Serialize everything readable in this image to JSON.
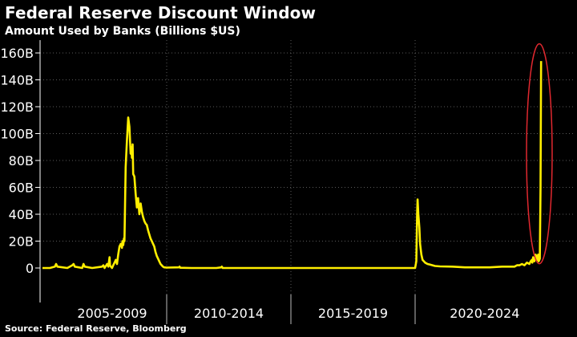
{
  "title": "Federal Reserve Discount Window",
  "subtitle": "Amount Used by Banks (Billions $US)",
  "source": "Source: Federal Reserve, Bloomberg",
  "colors": {
    "background": "#000000",
    "line": "#ffee00",
    "highlight": "#e0282f",
    "grid": "#5a5a5a"
  },
  "chart_data": {
    "type": "line",
    "title": "Federal Reserve Discount Window",
    "subtitle": "Amount Used by Banks (Billions $US)",
    "xlabel": "",
    "ylabel": "",
    "x_range": [
      2003.0,
      2023.6
    ],
    "ylim": [
      0,
      170
    ],
    "yticks": [
      0,
      20,
      40,
      60,
      80,
      100,
      120,
      140,
      160
    ],
    "ytick_labels": [
      "0",
      "20B",
      "40B",
      "60B",
      "80B",
      "100B",
      "120B",
      "140B",
      "160B"
    ],
    "grid": true,
    "categories": [
      {
        "label": "2005-2009",
        "start": 2003.0,
        "end": 2008.0
      },
      {
        "label": "2010-2014",
        "start": 2008.0,
        "end": 2013.0
      },
      {
        "label": "2015-2019",
        "start": 2013.0,
        "end": 2018.0
      },
      {
        "label": "2020-2024",
        "start": 2018.0,
        "end": 2023.6
      }
    ],
    "series": [
      {
        "x": [
          2003.0,
          2003.3,
          2003.5,
          2003.55,
          2003.6,
          2004.0,
          2004.2,
          2004.25,
          2004.3,
          2004.6,
          2004.65,
          2004.7,
          2005.0,
          2005.4,
          2005.45,
          2005.5,
          2005.6,
          2005.65,
          2005.7,
          2005.72,
          2005.75,
          2005.8,
          2005.85,
          2005.9,
          2005.95,
          2006.0,
          2006.05,
          2006.1,
          2006.15,
          2006.2,
          2006.22,
          2006.25,
          2006.28,
          2006.3,
          2006.35,
          2006.4,
          2006.45,
          2006.5,
          2006.55,
          2006.58,
          2006.6,
          2006.63,
          2006.65,
          2006.7,
          2006.75,
          2006.8,
          2006.85,
          2006.9,
          2006.95,
          2007.0,
          2007.05,
          2007.1,
          2007.15,
          2007.2,
          2007.25,
          2007.3,
          2007.35,
          2007.4,
          2007.45,
          2007.5,
          2007.55,
          2007.6,
          2007.65,
          2007.7,
          2007.75,
          2007.8,
          2007.85,
          2007.9,
          2008.0,
          2008.5,
          2008.52,
          2008.55,
          2009.0,
          2010.0,
          2010.2,
          2010.22,
          2010.25,
          2011.0,
          2012.0,
          2013.0,
          2014.0,
          2015.0,
          2016.0,
          2017.0,
          2018.0,
          2018.05,
          2018.08,
          2018.1,
          2018.13,
          2018.17,
          2018.2,
          2018.25,
          2018.3,
          2018.4,
          2018.5,
          2018.6,
          2018.7,
          2018.8,
          2019.0,
          2019.5,
          2020.0,
          2020.5,
          2021.0,
          2021.5,
          2021.8,
          2022.0,
          2022.1,
          2022.2,
          2022.3,
          2022.4,
          2022.5,
          2022.6,
          2022.65,
          2022.7,
          2022.72,
          2022.75,
          2022.8,
          2022.82,
          2022.85,
          2022.9,
          2022.92,
          2022.95,
          2022.97,
          2023.0,
          2023.02,
          2023.05,
          2023.07
        ],
        "y": [
          0,
          0,
          1,
          3,
          1,
          0,
          2,
          3,
          1,
          0,
          3,
          1,
          0,
          1,
          2,
          0,
          3,
          1,
          8,
          2,
          1,
          0,
          2,
          4,
          6,
          3,
          10,
          16,
          18,
          15,
          20,
          17,
          22,
          20,
          75,
          95,
          112,
          105,
          85,
          90,
          82,
          92,
          70,
          68,
          55,
          45,
          52,
          40,
          48,
          42,
          38,
          35,
          33,
          32,
          28,
          25,
          22,
          20,
          18,
          16,
          12,
          9,
          7,
          5,
          3,
          2,
          1,
          0.5,
          0.3,
          0.5,
          1,
          0.2,
          0,
          0,
          0.5,
          1,
          0,
          0,
          0,
          0,
          0,
          0,
          0,
          0,
          0,
          5,
          40,
          51,
          40,
          30,
          18,
          10,
          6,
          4,
          3,
          2.5,
          2,
          1.5,
          1.2,
          1,
          0.5,
          0.5,
          0.5,
          1,
          1,
          1,
          2,
          2,
          3,
          2,
          4,
          3,
          5,
          6,
          4,
          8,
          5,
          7,
          10,
          8,
          6,
          10,
          5,
          6,
          7,
          60,
          154
        ]
      }
    ],
    "highlight": {
      "type": "ellipse",
      "x": 2023.0,
      "y": 85
    }
  }
}
